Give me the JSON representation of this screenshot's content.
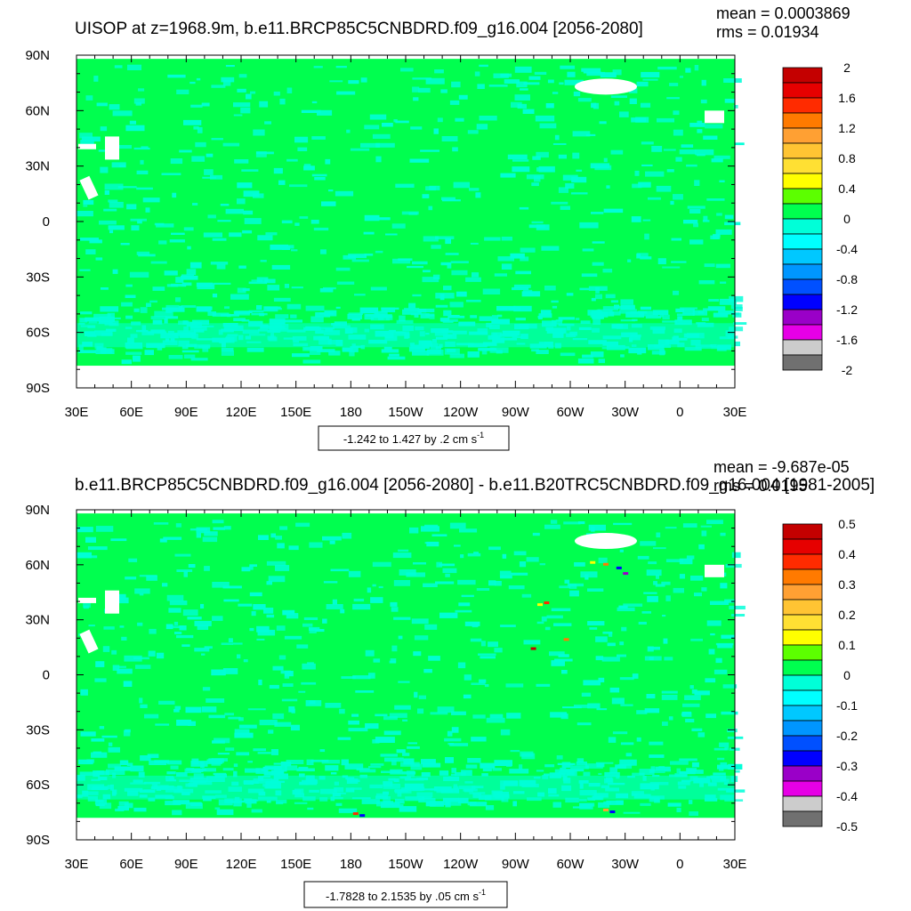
{
  "colors": {
    "green": "#00ff4f",
    "cyan_light": "#00ffd8",
    "land": "#ffffff"
  },
  "chart_data": [
    {
      "type": "heatmap",
      "title": "UISOP at z=1968.9m, b.e11.BRCP85C5CNBDRD.f09_g16.004 [2056-2080]",
      "stats": [
        "mean = 0.0003869",
        "rms = 0.01934"
      ],
      "contour_label": "-1.242 to 1.427 by .2 cm s",
      "contour_label_sup": "-1",
      "x_ticks": [
        "30E",
        "60E",
        "90E",
        "120E",
        "150E",
        "180",
        "150W",
        "120W",
        "90W",
        "60W",
        "30W",
        "0",
        "30E"
      ],
      "y_ticks": [
        "90N",
        "60N",
        "30N",
        "0",
        "30S",
        "60S",
        "90S"
      ],
      "colorbar_labels": [
        "2",
        "1.6",
        "1.2",
        "0.8",
        "0.4",
        "0",
        "-0.4",
        "-0.8",
        "-1.2",
        "-1.6",
        "-2"
      ],
      "colorbar_colors": [
        "#c40000",
        "#e60000",
        "#ff2b00",
        "#ff7a00",
        "#ffa033",
        "#ffc433",
        "#ffe033",
        "#ffff00",
        "#5cff00",
        "#00ff4f",
        "#00ffd8",
        "#00ffff",
        "#00c8ff",
        "#0096ff",
        "#0050ff",
        "#0000ff",
        "#9a00c8",
        "#e600e6",
        "#cccccc",
        "#707070"
      ]
    },
    {
      "type": "heatmap",
      "title": "b.e11.BRCP85C5CNBDRD.f09_g16.004 [2056-2080] - b.e11.B20TRC5CNBDRD.f09_g16.004 [1981-2005]",
      "stats": [
        "mean = -9.687e-05",
        "rms = 0.0195"
      ],
      "contour_label": "-1.7828 to 2.1535 by .05 cm s",
      "contour_label_sup": "-1",
      "x_ticks": [
        "30E",
        "60E",
        "90E",
        "120E",
        "150E",
        "180",
        "150W",
        "120W",
        "90W",
        "60W",
        "30W",
        "0",
        "30E"
      ],
      "y_ticks": [
        "90N",
        "60N",
        "30N",
        "0",
        "30S",
        "60S",
        "90S"
      ],
      "colorbar_labels": [
        "0.5",
        "0.4",
        "0.3",
        "0.2",
        "0.1",
        "0",
        "-0.1",
        "-0.2",
        "-0.3",
        "-0.4",
        "-0.5"
      ],
      "colorbar_colors": [
        "#c40000",
        "#e60000",
        "#ff2b00",
        "#ff7a00",
        "#ffa033",
        "#ffc433",
        "#ffe033",
        "#ffff00",
        "#5cff00",
        "#00ff4f",
        "#00ffd8",
        "#00ffff",
        "#00c8ff",
        "#0096ff",
        "#0050ff",
        "#0000ff",
        "#9a00c8",
        "#e600e6",
        "#cccccc",
        "#707070"
      ]
    }
  ]
}
